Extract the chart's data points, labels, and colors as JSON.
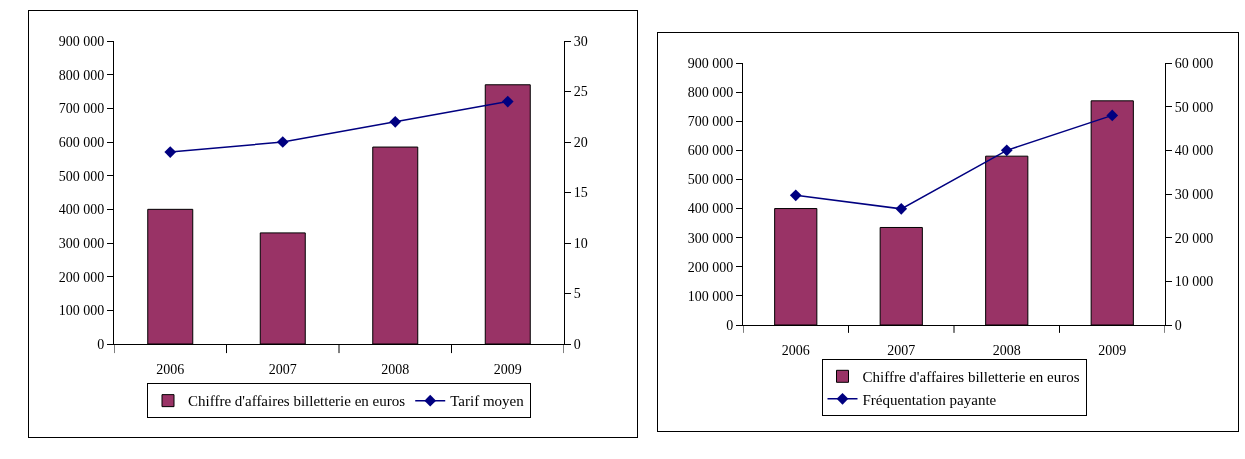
{
  "chart_data": [
    {
      "type": "bar",
      "categories": [
        "2006",
        "2007",
        "2008",
        "2009"
      ],
      "series": [
        {
          "name": "Chiffre d'affaires billetterie en euros",
          "color": "#993366",
          "values": [
            400000,
            330000,
            585000,
            770000
          ]
        },
        {
          "name": "Tarif moyen",
          "type": "line",
          "axis": "y2",
          "color": "#000080",
          "marker": "diamond",
          "values": [
            19,
            20,
            22,
            24
          ]
        }
      ],
      "ylim": [
        0,
        900000
      ],
      "yticks": [
        0,
        {
          "value": 100000,
          "label": "100 000"
        },
        {
          "value": 200000,
          "label": "200 000"
        },
        {
          "value": 300000,
          "label": "300 000"
        },
        {
          "value": 400000,
          "label": "400 000"
        },
        {
          "value": 500000,
          "label": "500 000"
        },
        {
          "value": 600000,
          "label": "600 000"
        },
        {
          "value": 700000,
          "label": "700 000"
        },
        {
          "value": 800000,
          "label": "800 000"
        },
        {
          "value": 900000,
          "label": "900 000"
        }
      ],
      "y2lim": [
        0,
        30
      ],
      "y2ticks": [
        0,
        5,
        10,
        15,
        20,
        25,
        30
      ],
      "grid": false,
      "legend": "bottom"
    },
    {
      "type": "bar",
      "categories": [
        "2006",
        "2007",
        "2008",
        "2009"
      ],
      "series": [
        {
          "name": "Chiffre d'affaires billetterie en euros",
          "color": "#993366",
          "values": [
            400000,
            335000,
            580000,
            770000
          ]
        },
        {
          "name": "Fréquentation payante",
          "type": "line",
          "axis": "y2",
          "color": "#000080",
          "marker": "diamond",
          "values": [
            29700,
            26600,
            40000,
            48000
          ]
        }
      ],
      "ylim": [
        0,
        900000
      ],
      "yticks": [
        0,
        {
          "value": 100000,
          "label": "100 000"
        },
        {
          "value": 200000,
          "label": "200 000"
        },
        {
          "value": 300000,
          "label": "300 000"
        },
        {
          "value": 400000,
          "label": "400 000"
        },
        {
          "value": 500000,
          "label": "500 000"
        },
        {
          "value": 600000,
          "label": "600 000"
        },
        {
          "value": 700000,
          "label": "700 000"
        },
        {
          "value": 800000,
          "label": "800 000"
        },
        {
          "value": 900000,
          "label": "900 000"
        }
      ],
      "y2lim": [
        0,
        60000
      ],
      "y2ticks": [
        0,
        {
          "value": 10000,
          "label": "10 000"
        },
        {
          "value": 20000,
          "label": "20 000"
        },
        {
          "value": 30000,
          "label": "30 000"
        },
        {
          "value": 40000,
          "label": "40 000"
        },
        {
          "value": 50000,
          "label": "50 000"
        },
        {
          "value": 60000,
          "label": "60 000"
        }
      ],
      "grid": false,
      "legend": "bottom"
    }
  ]
}
